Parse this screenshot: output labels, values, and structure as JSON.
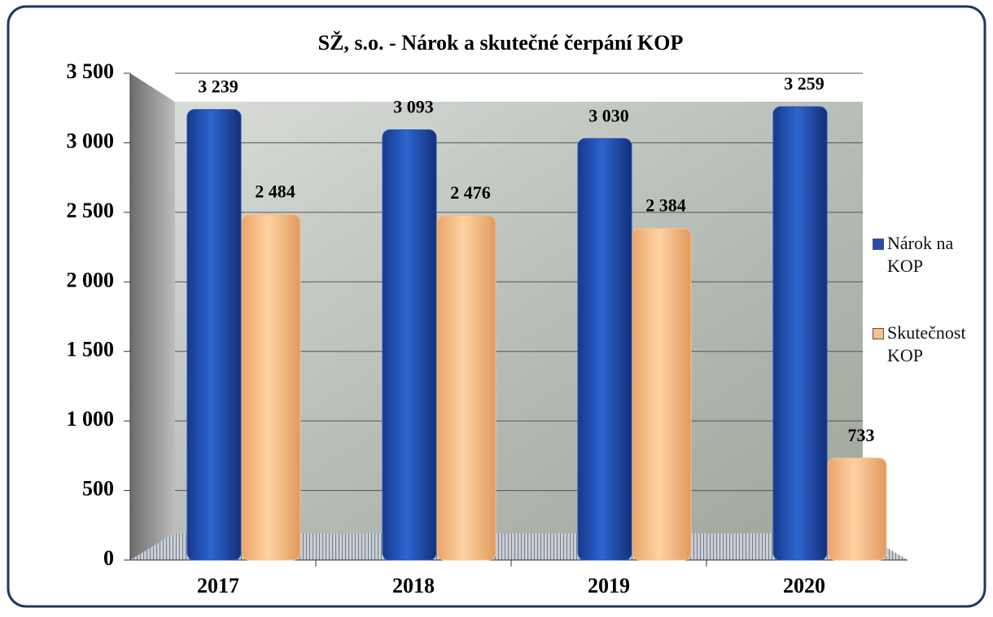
{
  "chart_data": {
    "type": "bar",
    "title": "SŽ, s.o. - Nárok a skutečné čerpání KOP",
    "categories": [
      "2017",
      "2018",
      "2019",
      "2020"
    ],
    "series": [
      {
        "name": "Nárok na KOP",
        "color": "#1f4fb5",
        "values": [
          3239,
          3093,
          3030,
          3259
        ],
        "value_labels": [
          "3 239",
          "3 093",
          "3 030",
          "3 259"
        ]
      },
      {
        "name": "Skutečnost KOP",
        "color": "#f9c08a",
        "values": [
          2484,
          2476,
          2384,
          733
        ],
        "value_labels": [
          "2 484",
          "2 476",
          "2 384",
          "733"
        ]
      }
    ],
    "ylim": [
      0,
      3500
    ],
    "yticks": [
      0,
      500,
      {
        "value": 1000,
        "label": "1 000"
      },
      {
        "value": 1500,
        "label": "1 500"
      },
      {
        "value": 2000,
        "label": "2 000"
      },
      {
        "value": 2500,
        "label": "2 500"
      },
      {
        "value": 3000,
        "label": "3 000"
      },
      {
        "value": 3500,
        "label": "3 500"
      }
    ],
    "grid": true,
    "legend": "right"
  }
}
